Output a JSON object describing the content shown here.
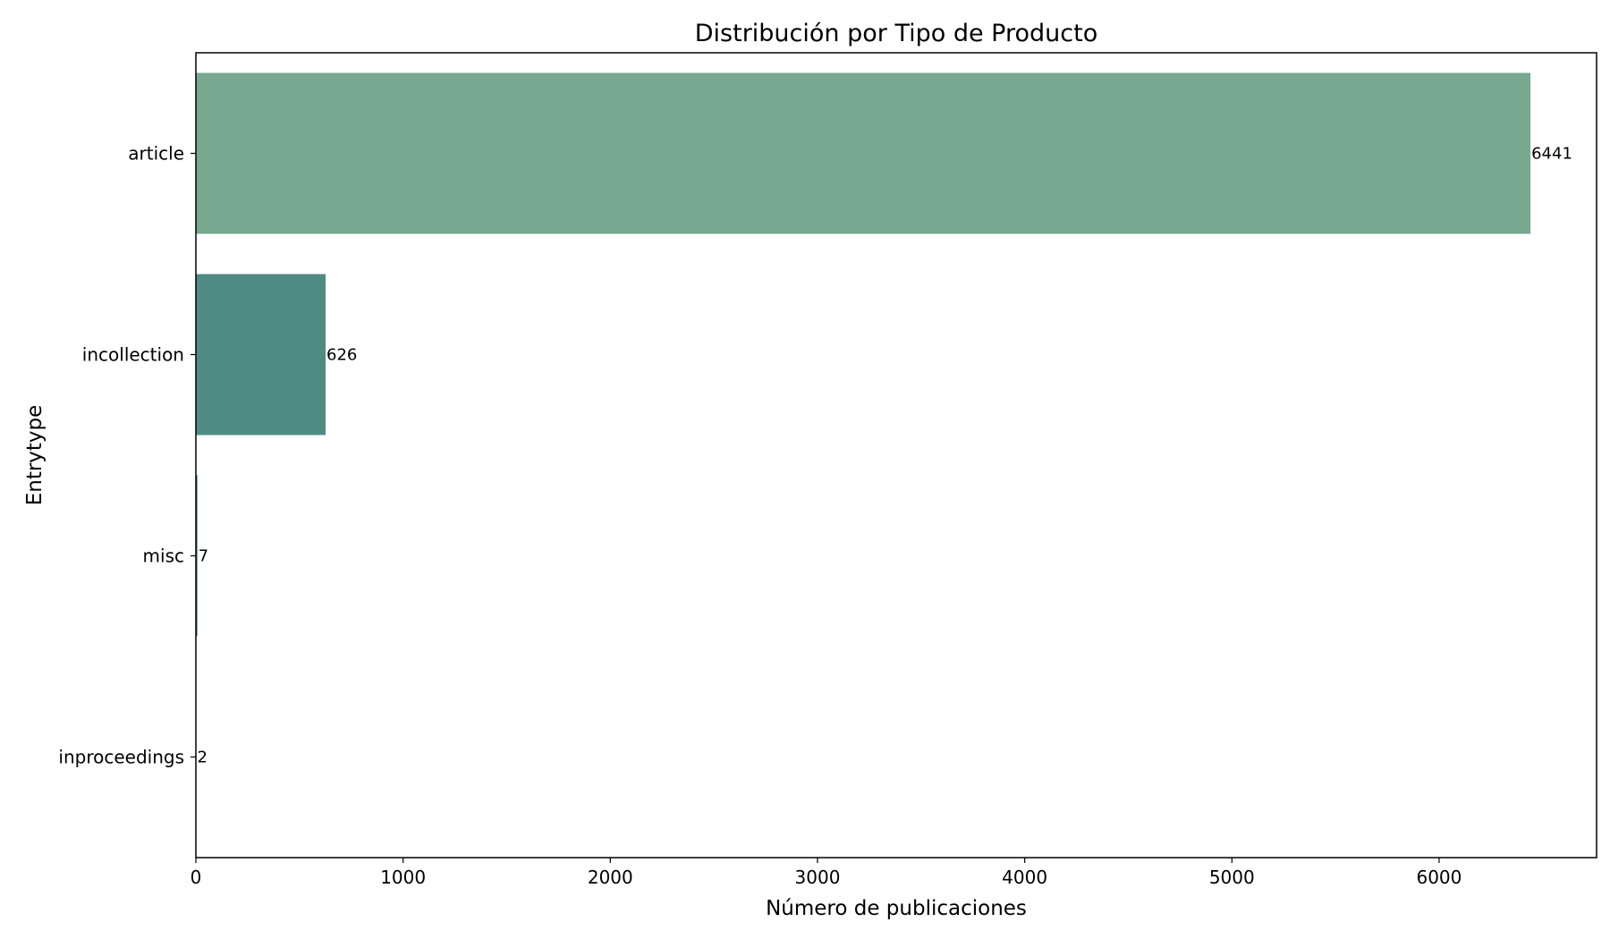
{
  "chart_data": {
    "type": "bar",
    "orientation": "horizontal",
    "title": "Distribución por Tipo de Producto",
    "xlabel": "Número de publicaciones",
    "ylabel": "Entrytype",
    "categories": [
      "article",
      "incollection",
      "misc",
      "inproceedings"
    ],
    "values": [
      6441,
      626,
      7,
      2
    ],
    "data_labels": [
      "6441",
      "626",
      "7",
      "2"
    ],
    "bar_colors": [
      "#78a890",
      "#4f8b84",
      "#3c6e79",
      "#2f4f66"
    ],
    "xlim": [
      0,
      6760
    ],
    "xticks": [
      0,
      1000,
      2000,
      3000,
      4000,
      5000,
      6000
    ],
    "xtick_labels": [
      "0",
      "1000",
      "2000",
      "3000",
      "4000",
      "5000",
      "6000"
    ],
    "grid": false,
    "legend": "none"
  }
}
